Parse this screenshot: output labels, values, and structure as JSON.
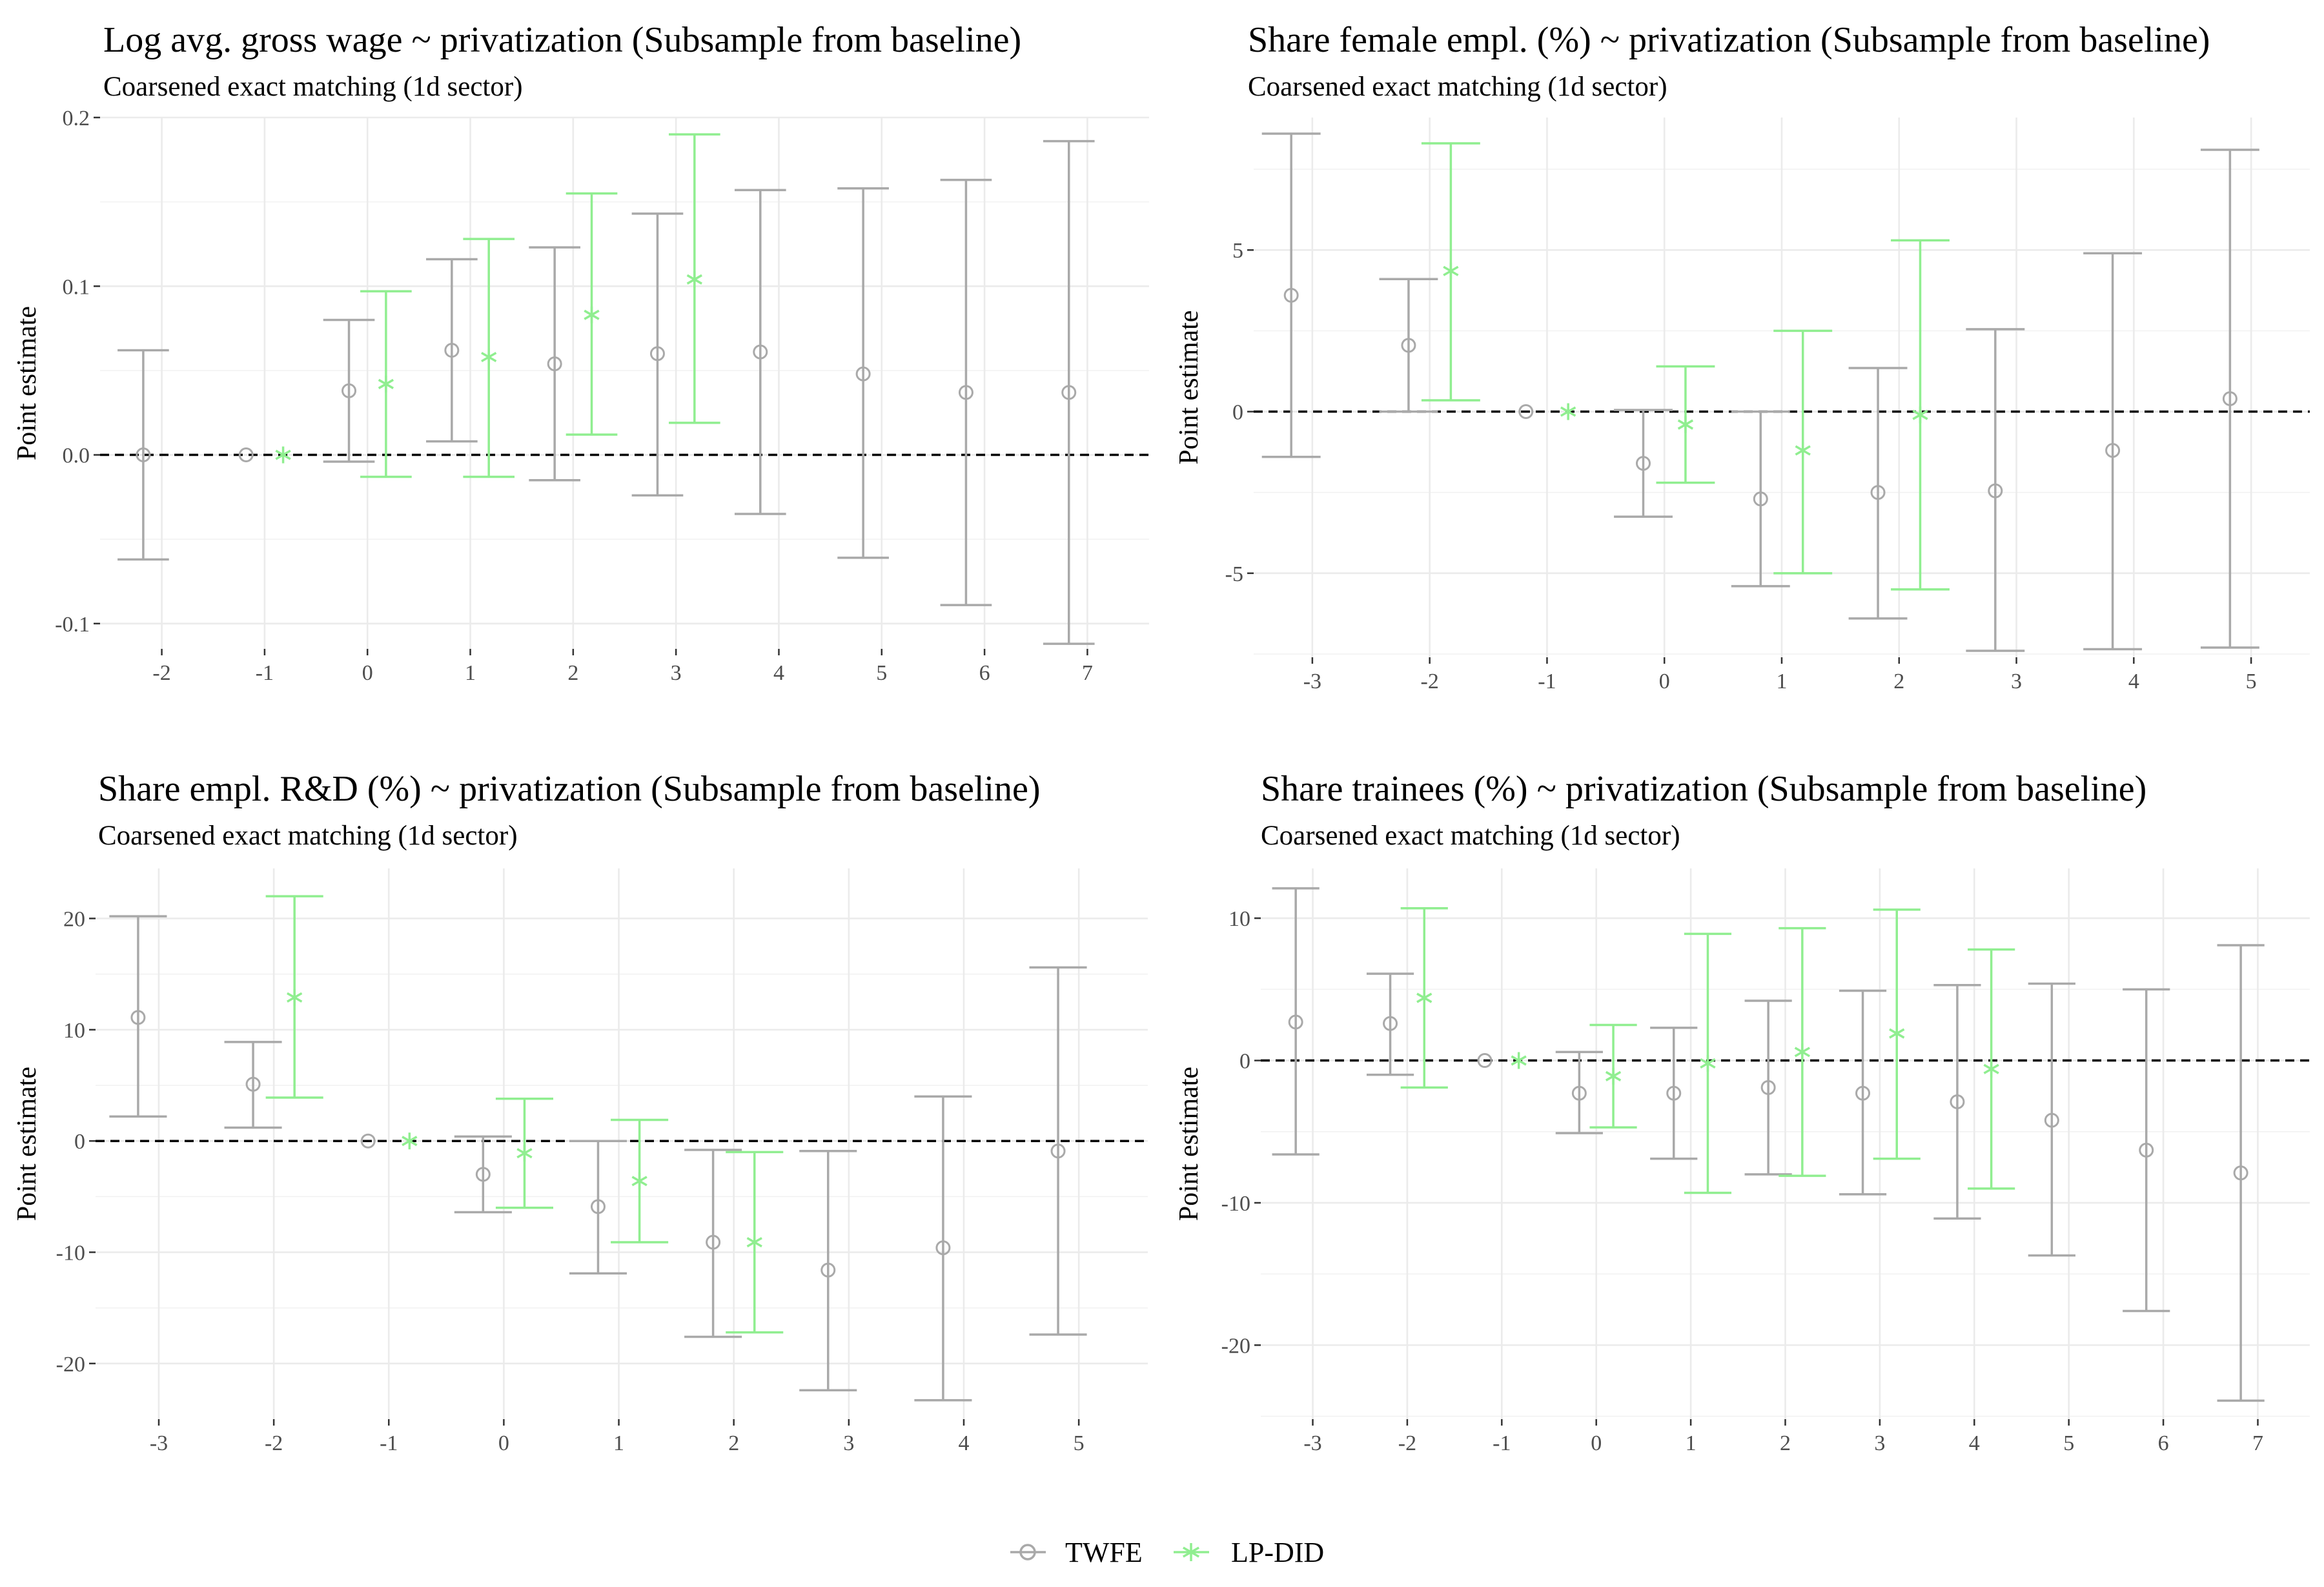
{
  "legend": {
    "entries": [
      {
        "name": "TWFE",
        "color": "#a9a9a9",
        "shape": "circle"
      },
      {
        "name": "LP-DID",
        "color": "#90ee90",
        "shape": "asterisk"
      }
    ]
  },
  "chart_data": [
    {
      "type": "errorbar",
      "title": "Log avg. gross wage ~ privatization (Subsample from baseline)",
      "subtitle": "Coarsened exact matching (1d sector)",
      "ylabel": "Point estimate",
      "xlabel": "",
      "x_ticks": [
        -2,
        -1,
        0,
        1,
        2,
        3,
        4,
        5,
        6,
        7
      ],
      "xlim": [
        -2.6,
        7.6
      ],
      "y_ticks": [
        -0.1,
        0.0,
        0.1,
        0.2
      ],
      "y_tick_labels": [
        "-0.1",
        "0.0",
        "0.1",
        "0.2"
      ],
      "ylim": [
        -0.115,
        0.2
      ],
      "grid": true,
      "reference_line": 0,
      "series": [
        {
          "name": "TWFE",
          "points": [
            {
              "x": -2,
              "est": 0.0,
              "lo": -0.062,
              "hi": 0.062
            },
            {
              "x": -1,
              "est": 0.0,
              "lo": null,
              "hi": null
            },
            {
              "x": 0,
              "est": 0.038,
              "lo": -0.004,
              "hi": 0.08
            },
            {
              "x": 1,
              "est": 0.062,
              "lo": 0.008,
              "hi": 0.116
            },
            {
              "x": 2,
              "est": 0.054,
              "lo": -0.015,
              "hi": 0.123
            },
            {
              "x": 3,
              "est": 0.06,
              "lo": -0.024,
              "hi": 0.143
            },
            {
              "x": 4,
              "est": 0.061,
              "lo": -0.035,
              "hi": 0.157
            },
            {
              "x": 5,
              "est": 0.048,
              "lo": -0.061,
              "hi": 0.158
            },
            {
              "x": 6,
              "est": 0.037,
              "lo": -0.089,
              "hi": 0.163
            },
            {
              "x": 7,
              "est": 0.037,
              "lo": -0.112,
              "hi": 0.186
            }
          ]
        },
        {
          "name": "LP-DID",
          "points": [
            {
              "x": -1,
              "est": 0.0,
              "lo": null,
              "hi": null
            },
            {
              "x": 0,
              "est": 0.042,
              "lo": -0.013,
              "hi": 0.097
            },
            {
              "x": 1,
              "est": 0.058,
              "lo": -0.013,
              "hi": 0.128
            },
            {
              "x": 2,
              "est": 0.083,
              "lo": 0.012,
              "hi": 0.155
            },
            {
              "x": 3,
              "est": 0.104,
              "lo": 0.019,
              "hi": 0.19
            }
          ]
        }
      ]
    },
    {
      "type": "errorbar",
      "title": "Share female empl. (%) ~ privatization (Subsample from baseline)",
      "subtitle": "Coarsened exact matching (1d sector)",
      "ylabel": "Point estimate",
      "xlabel": "",
      "x_ticks": [
        -3,
        -2,
        -1,
        0,
        1,
        2,
        3,
        4,
        5
      ],
      "xlim": [
        -3.5,
        5.5
      ],
      "y_ticks": [
        -5,
        0,
        5
      ],
      "y_tick_labels": [
        "-5",
        "0",
        "5"
      ],
      "ylim": [
        -7.6,
        9.1
      ],
      "grid": true,
      "reference_line": 0,
      "series": [
        {
          "name": "TWFE",
          "points": [
            {
              "x": -3,
              "est": 3.6,
              "lo": -1.4,
              "hi": 8.6
            },
            {
              "x": -2,
              "est": 2.05,
              "lo": 0.0,
              "hi": 4.1
            },
            {
              "x": -1,
              "est": 0.0,
              "lo": null,
              "hi": null
            },
            {
              "x": 0,
              "est": -1.6,
              "lo": -3.25,
              "hi": 0.05
            },
            {
              "x": 1,
              "est": -2.7,
              "lo": -5.4,
              "hi": 0.0
            },
            {
              "x": 2,
              "est": -2.5,
              "lo": -6.4,
              "hi": 1.35
            },
            {
              "x": 3,
              "est": -2.45,
              "lo": -7.4,
              "hi": 2.55
            },
            {
              "x": 4,
              "est": -1.2,
              "lo": -7.35,
              "hi": 4.9
            },
            {
              "x": 5,
              "est": 0.4,
              "lo": -7.3,
              "hi": 8.1
            }
          ]
        },
        {
          "name": "LP-DID",
          "points": [
            {
              "x": -2,
              "est": 4.35,
              "lo": 0.35,
              "hi": 8.3
            },
            {
              "x": -1,
              "est": 0.0,
              "lo": null,
              "hi": null
            },
            {
              "x": 0,
              "est": -0.4,
              "lo": -2.2,
              "hi": 1.4
            },
            {
              "x": 1,
              "est": -1.2,
              "lo": -5.0,
              "hi": 2.5
            },
            {
              "x": 2,
              "est": -0.1,
              "lo": -5.5,
              "hi": 5.3
            }
          ]
        }
      ]
    },
    {
      "type": "errorbar",
      "title": "Share empl. R&D (%) ~ privatization (Subsample from baseline)",
      "subtitle": "Coarsened exact matching (1d sector)",
      "ylabel": "Point estimate",
      "xlabel": "",
      "x_ticks": [
        -3,
        -2,
        -1,
        0,
        1,
        2,
        3,
        4,
        5
      ],
      "xlim": [
        -3.55,
        5.6
      ],
      "y_ticks": [
        -20,
        -10,
        0,
        10,
        20
      ],
      "y_tick_labels": [
        "-20",
        "-10",
        "0",
        "10",
        "20"
      ],
      "ylim": [
        -25,
        24.5
      ],
      "grid": true,
      "reference_line": 0,
      "series": [
        {
          "name": "TWFE",
          "points": [
            {
              "x": -3,
              "est": 11.1,
              "lo": 2.2,
              "hi": 20.2
            },
            {
              "x": -2,
              "est": 5.1,
              "lo": 1.2,
              "hi": 8.9
            },
            {
              "x": -1,
              "est": 0.0,
              "lo": null,
              "hi": null
            },
            {
              "x": 0,
              "est": -3.0,
              "lo": -6.4,
              "hi": 0.4
            },
            {
              "x": 1,
              "est": -5.9,
              "lo": -11.9,
              "hi": 0.0
            },
            {
              "x": 2,
              "est": -9.1,
              "lo": -17.6,
              "hi": -0.8
            },
            {
              "x": 3,
              "est": -11.6,
              "lo": -22.4,
              "hi": -0.9
            },
            {
              "x": 4,
              "est": -9.6,
              "lo": -23.3,
              "hi": 4.0
            },
            {
              "x": 5,
              "est": -0.9,
              "lo": -17.4,
              "hi": 15.6
            }
          ]
        },
        {
          "name": "LP-DID",
          "points": [
            {
              "x": -2,
              "est": 12.9,
              "lo": 3.9,
              "hi": 22.0
            },
            {
              "x": -1,
              "est": 0.0,
              "lo": null,
              "hi": null
            },
            {
              "x": 0,
              "est": -1.1,
              "lo": -6.0,
              "hi": 3.8
            },
            {
              "x": 1,
              "est": -3.6,
              "lo": -9.1,
              "hi": 1.9
            },
            {
              "x": 2,
              "est": -9.1,
              "lo": -17.2,
              "hi": -1.0
            }
          ]
        }
      ]
    },
    {
      "type": "errorbar",
      "title": "Share trainees (%) ~ privatization (Subsample from baseline)",
      "subtitle": "Coarsened exact matching (1d sector)",
      "ylabel": "Point estimate",
      "xlabel": "",
      "x_ticks": [
        -3,
        -2,
        -1,
        0,
        1,
        2,
        3,
        4,
        5,
        6,
        7
      ],
      "xlim": [
        -3.55,
        7.55
      ],
      "y_ticks": [
        -20,
        -10,
        0,
        10
      ],
      "y_tick_labels": [
        "-20",
        "-10",
        "0",
        "10"
      ],
      "ylim": [
        -25.2,
        13.5
      ],
      "grid": true,
      "reference_line": 0,
      "series": [
        {
          "name": "TWFE",
          "points": [
            {
              "x": -3,
              "est": 2.7,
              "lo": -6.6,
              "hi": 12.1
            },
            {
              "x": -2,
              "est": 2.6,
              "lo": -1.0,
              "hi": 6.1
            },
            {
              "x": -1,
              "est": 0.0,
              "lo": null,
              "hi": null
            },
            {
              "x": 0,
              "est": -2.3,
              "lo": -5.1,
              "hi": 0.6
            },
            {
              "x": 1,
              "est": -2.3,
              "lo": -6.9,
              "hi": 2.3
            },
            {
              "x": 2,
              "est": -1.9,
              "lo": -8.0,
              "hi": 4.2
            },
            {
              "x": 3,
              "est": -2.3,
              "lo": -9.4,
              "hi": 4.9
            },
            {
              "x": 4,
              "est": -2.9,
              "lo": -11.1,
              "hi": 5.3
            },
            {
              "x": 5,
              "est": -4.2,
              "lo": -13.7,
              "hi": 5.4
            },
            {
              "x": 6,
              "est": -6.3,
              "lo": -17.6,
              "hi": 5.0
            },
            {
              "x": 7,
              "est": -7.9,
              "lo": -23.9,
              "hi": 8.1
            }
          ]
        },
        {
          "name": "LP-DID",
          "points": [
            {
              "x": -2,
              "est": 4.4,
              "lo": -1.9,
              "hi": 10.7
            },
            {
              "x": -1,
              "est": 0.0,
              "lo": null,
              "hi": null
            },
            {
              "x": 0,
              "est": -1.1,
              "lo": -4.7,
              "hi": 2.5
            },
            {
              "x": 1,
              "est": -0.2,
              "lo": -9.3,
              "hi": 8.9
            },
            {
              "x": 2,
              "est": 0.6,
              "lo": -8.1,
              "hi": 9.3
            },
            {
              "x": 3,
              "est": 1.9,
              "lo": -6.9,
              "hi": 10.6
            },
            {
              "x": 4,
              "est": -0.6,
              "lo": -9.0,
              "hi": 7.8
            }
          ]
        }
      ]
    }
  ]
}
